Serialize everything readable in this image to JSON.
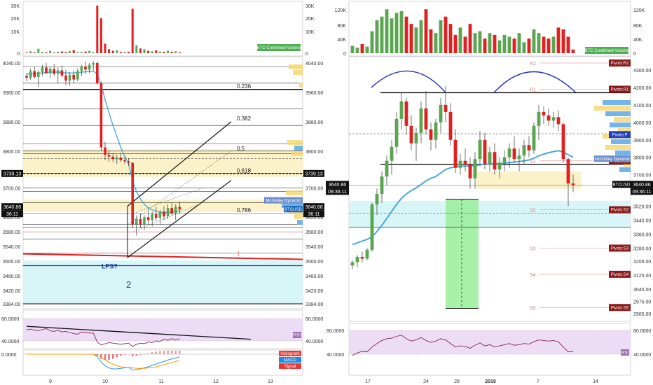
{
  "colors": {
    "bull": "#5aa54f",
    "bear": "#e02020",
    "wick": "#333333",
    "ma": "#4aa8d8",
    "rsi_line": "#8b2252",
    "rsi_band": "#ecdcf5",
    "zone_yellow": "#fbf2c9",
    "zone_cyan": "#d8f6f8",
    "price_tag": "#111111",
    "pivot_tag": "#8b1a1a",
    "vp_yellow": "#f7d874",
    "vp_blue": "#5aa8e6",
    "green_box": "#99ee99",
    "arc": "#2233bb",
    "support_red": "#e02020",
    "support_blue": "#1a3fa0"
  },
  "left": {
    "volume_axis": [
      "30K",
      "20K",
      "10K",
      "0"
    ],
    "volume_label": "BTC Combined Volume",
    "price_axis": [
      "4040.00",
      "3960.00",
      "3880.00",
      "3800.00",
      "3700.00",
      "3620.00",
      "3580.00",
      "3540.00",
      "3500.00",
      "3460.00",
      "3420.00",
      "3384.00"
    ],
    "fib_labels": [
      "0.236",
      "0.382",
      "0.5",
      "0.618",
      "0.786",
      "1"
    ],
    "price_tag_left": "3739.13",
    "price_tag_right": "3739.13",
    "last_price_left": "3640.86",
    "last_time_left": "36:11",
    "last_price_right": "3640.86",
    "last_time_right": "36:11",
    "symbol_tag": "BTCUSD",
    "mcginley_tag": "McGinley Dynamic",
    "lps_label": "LPS?",
    "wave_label": "2",
    "rsi_axis": [
      "80.0000",
      "40.0000"
    ],
    "rsi_tag": "RSI",
    "macd_axis": "0.0000",
    "macd_tags": [
      "Histogram",
      "MACD",
      "Signal"
    ],
    "x_axis": [
      "9",
      "10",
      "11",
      "12",
      "13"
    ]
  },
  "right": {
    "volume_axis": [
      "120K",
      "80K",
      "40K",
      "0"
    ],
    "volume_label": "BTC Combined Volume",
    "price_axis": [
      "4300.00",
      "4200.00",
      "4100.00",
      "4000.00",
      "3900.00",
      "3800.00",
      "3700.00",
      "3600.00",
      "3520.00",
      "3440.00",
      "3360.00",
      "3280.00",
      "3205.00",
      "3125.00",
      "3045.00",
      "2975.00",
      "2905.00"
    ],
    "pivot_levels": [
      "R2",
      "R1",
      "S1",
      "S2",
      "S3",
      "S4",
      "S5"
    ],
    "pivot_tags": [
      "Pivots:R2",
      "Pivots:R1",
      "Pivots:P",
      "Pivots:S1",
      "Pivots:S2",
      "Pivots:S3",
      "Pivots:S4",
      "Pivots:S5"
    ],
    "mcginley_tag": "McGinley Dynamic",
    "symbol_tag": "BTCUSD",
    "last_price": "3640.86",
    "last_time": "09:36:11",
    "price_tag_left": "3640.86",
    "time_tag_left": "09:36:11",
    "rsi_axis": [
      "80.0000",
      "40.0000"
    ],
    "rsi_tag": "RSI",
    "x_axis": [
      "17",
      "24",
      "28",
      "2019",
      "7",
      "14"
    ]
  },
  "chart_data": [
    {
      "type": "candlestick",
      "name": "left",
      "title": "",
      "xlabel": "",
      "ylabel": "",
      "x_ticks": [
        "9",
        "10",
        "11",
        "12",
        "13"
      ],
      "ylim": [
        3370,
        4060
      ],
      "candles": [
        [
          4005,
          4012,
          3990,
          4000
        ],
        [
          4000,
          4025,
          3995,
          4018
        ],
        [
          4018,
          4030,
          3998,
          4002
        ],
        [
          4002,
          4020,
          3975,
          4015
        ],
        [
          4015,
          4035,
          4005,
          4028
        ],
        [
          4028,
          4040,
          4010,
          4012
        ],
        [
          4012,
          4030,
          4000,
          4024
        ],
        [
          4024,
          4038,
          4005,
          4010
        ],
        [
          4010,
          4028,
          3985,
          4020
        ],
        [
          4020,
          4033,
          4000,
          4006
        ],
        [
          4006,
          4022,
          3980,
          3992
        ],
        [
          3992,
          4015,
          3978,
          4008
        ],
        [
          4008,
          4020,
          3985,
          3995
        ],
        [
          3995,
          4025,
          3990,
          4018
        ],
        [
          4018,
          4035,
          4005,
          4030
        ],
        [
          4030,
          4045,
          4010,
          4022
        ],
        [
          4022,
          4040,
          4012,
          4035
        ],
        [
          4035,
          4045,
          4020,
          4040
        ],
        [
          4040,
          4045,
          3980,
          3985
        ],
        [
          3985,
          3990,
          3800,
          3810
        ],
        [
          3810,
          3825,
          3775,
          3790
        ],
        [
          3790,
          3800,
          3770,
          3785
        ],
        [
          3785,
          3795,
          3770,
          3778
        ],
        [
          3778,
          3790,
          3765,
          3782
        ],
        [
          3782,
          3795,
          3770,
          3775
        ],
        [
          3775,
          3785,
          3765,
          3772
        ],
        [
          3772,
          3780,
          3760,
          3768
        ],
        [
          3768,
          3770,
          3590,
          3600
        ],
        [
          3600,
          3625,
          3570,
          3615
        ],
        [
          3615,
          3630,
          3590,
          3600
        ],
        [
          3600,
          3625,
          3585,
          3620
        ],
        [
          3620,
          3640,
          3600,
          3612
        ],
        [
          3612,
          3635,
          3595,
          3628
        ],
        [
          3628,
          3648,
          3610,
          3618
        ],
        [
          3618,
          3640,
          3600,
          3635
        ],
        [
          3635,
          3650,
          3612,
          3622
        ],
        [
          3622,
          3655,
          3615,
          3645
        ],
        [
          3645,
          3660,
          3625,
          3630
        ],
        [
          3630,
          3655,
          3612,
          3648
        ],
        [
          3648,
          3662,
          3630,
          3641
        ]
      ],
      "volume": [
        300,
        1200,
        500,
        2800,
        800,
        600,
        1500,
        400,
        900,
        1100,
        700,
        1300,
        2000,
        600,
        800,
        1000,
        1500,
        700,
        30000,
        22000,
        6000,
        2500,
        1500,
        1800,
        700,
        600,
        900,
        28000,
        5000,
        3000,
        2500,
        1500,
        1200,
        1800,
        1000,
        800,
        1500,
        900,
        1200,
        600
      ],
      "ma": [
        4010,
        4010,
        4011,
        4012,
        4013,
        4014,
        4015,
        4015,
        4015,
        4014,
        4013,
        4013,
        4013,
        4014,
        4015,
        4016,
        4017,
        4018,
        4010,
        3980,
        3940,
        3905,
        3870,
        3840,
        3810,
        3785,
        3765,
        3720,
        3690,
        3670,
        3655,
        3645,
        3640,
        3636,
        3634,
        3633,
        3633,
        3634,
        3635,
        3637
      ],
      "rsi": [
        60,
        61,
        59,
        58,
        60,
        62,
        58,
        57,
        59,
        56,
        57,
        55,
        53,
        52,
        56,
        55,
        54,
        54,
        38,
        33,
        35,
        37,
        36,
        35,
        34,
        35,
        36,
        30,
        34,
        36,
        35,
        38,
        37,
        40,
        39,
        43,
        41,
        44,
        42,
        44
      ],
      "macd": [
        0,
        0,
        0,
        0,
        0,
        0,
        0,
        0,
        0,
        0,
        0,
        0,
        0,
        0,
        0,
        0,
        0,
        0,
        -5,
        -15,
        -22,
        -26,
        -28,
        -28,
        -27,
        -26,
        -25,
        -30,
        -30,
        -28,
        -26,
        -24,
        -21,
        -19,
        -16,
        -14,
        -11,
        -9,
        -7,
        -5
      ],
      "signal": [
        0,
        0,
        0,
        0,
        0,
        0,
        0,
        0,
        0,
        0,
        0,
        0,
        0,
        0,
        0,
        0,
        0,
        0,
        -2,
        -6,
        -11,
        -15,
        -19,
        -22,
        -24,
        -25,
        -25,
        -26,
        -27,
        -27,
        -27,
        -26,
        -25,
        -24,
        -22,
        -20,
        -18,
        -16,
        -14,
        -12
      ]
    },
    {
      "type": "candlestick",
      "name": "right",
      "title": "",
      "xlabel": "",
      "ylabel": "",
      "x_ticks": [
        "17",
        "24",
        "28",
        "2019",
        "7",
        "14"
      ],
      "ylim": [
        2860,
        4360
      ],
      "candles": [
        [
          3180,
          3210,
          3160,
          3200
        ],
        [
          3200,
          3240,
          3170,
          3230
        ],
        [
          3230,
          3260,
          3200,
          3220
        ],
        [
          3220,
          3280,
          3210,
          3270
        ],
        [
          3270,
          3540,
          3260,
          3530
        ],
        [
          3530,
          3620,
          3470,
          3590
        ],
        [
          3590,
          3720,
          3540,
          3690
        ],
        [
          3690,
          3810,
          3640,
          3780
        ],
        [
          3780,
          3900,
          3700,
          3860
        ],
        [
          3860,
          4060,
          3820,
          4020
        ],
        [
          4020,
          4170,
          3960,
          4120
        ],
        [
          4120,
          4140,
          3930,
          3980
        ],
        [
          3980,
          4040,
          3840,
          3880
        ],
        [
          3880,
          3970,
          3780,
          3940
        ],
        [
          3940,
          4120,
          3880,
          4080
        ],
        [
          4080,
          4180,
          3930,
          3960
        ],
        [
          3960,
          4000,
          3840,
          3900
        ],
        [
          3900,
          4020,
          3850,
          4000
        ],
        [
          4000,
          4140,
          3940,
          4100
        ],
        [
          4100,
          4210,
          4000,
          4060
        ],
        [
          4060,
          4110,
          3870,
          3900
        ],
        [
          3900,
          3960,
          3710,
          3740
        ],
        [
          3740,
          3820,
          3700,
          3780
        ],
        [
          3780,
          3850,
          3720,
          3760
        ],
        [
          3760,
          3800,
          3620,
          3680
        ],
        [
          3680,
          3830,
          3620,
          3790
        ],
        [
          3790,
          3950,
          3750,
          3900
        ],
        [
          3900,
          3940,
          3730,
          3760
        ],
        [
          3760,
          3860,
          3720,
          3830
        ],
        [
          3830,
          3880,
          3700,
          3730
        ],
        [
          3730,
          3800,
          3680,
          3770
        ],
        [
          3770,
          3840,
          3720,
          3800
        ],
        [
          3800,
          3880,
          3740,
          3850
        ],
        [
          3850,
          3920,
          3770,
          3790
        ],
        [
          3790,
          3850,
          3720,
          3810
        ],
        [
          3810,
          3900,
          3760,
          3870
        ],
        [
          3870,
          3920,
          3800,
          3840
        ],
        [
          3840,
          4000,
          3820,
          3980
        ],
        [
          3980,
          4100,
          3900,
          4060
        ],
        [
          4060,
          4090,
          3990,
          4040
        ],
        [
          4040,
          4080,
          3980,
          4010
        ],
        [
          4010,
          4060,
          3970,
          4030
        ],
        [
          4030,
          4070,
          3950,
          3990
        ],
        [
          3990,
          4000,
          3770,
          3790
        ],
        [
          3790,
          3800,
          3520,
          3650
        ],
        [
          3650,
          3700,
          3600,
          3641
        ]
      ],
      "volume": [
        20000,
        15000,
        25000,
        18000,
        60000,
        90000,
        100000,
        120000,
        95000,
        110000,
        115000,
        100000,
        80000,
        70000,
        90000,
        120000,
        65000,
        55000,
        90000,
        100000,
        80000,
        50000,
        70000,
        45000,
        80000,
        55000,
        60000,
        40000,
        55000,
        50000,
        35000,
        50000,
        45000,
        40000,
        55000,
        30000,
        40000,
        65000,
        55000,
        45000,
        40000,
        45000,
        70000,
        65000,
        45000,
        10000
      ],
      "ma": [
        3300,
        3310,
        3320,
        3330,
        3345,
        3375,
        3410,
        3450,
        3490,
        3530,
        3565,
        3590,
        3610,
        3625,
        3645,
        3665,
        3680,
        3690,
        3710,
        3730,
        3740,
        3745,
        3748,
        3750,
        3750,
        3752,
        3758,
        3760,
        3762,
        3763,
        3765,
        3767,
        3770,
        3773,
        3776,
        3780,
        3785,
        3795,
        3808,
        3818,
        3826,
        3833,
        3838,
        3830,
        3815,
        3800
      ],
      "rsi": [
        38,
        42,
        45,
        44,
        52,
        58,
        63,
        66,
        67,
        70,
        72,
        66,
        62,
        64,
        68,
        63,
        60,
        62,
        66,
        64,
        58,
        52,
        54,
        53,
        50,
        55,
        59,
        54,
        56,
        52,
        54,
        56,
        58,
        55,
        56,
        58,
        57,
        61,
        64,
        63,
        62,
        63,
        61,
        52,
        44,
        44
      ],
      "pivots": {
        "R2": 4340,
        "R1": 4190,
        "P": 3930,
        "S1": 3780,
        "S2": 3500,
        "S3": 3280,
        "S4": 3130,
        "S5": 2940
      }
    }
  ]
}
